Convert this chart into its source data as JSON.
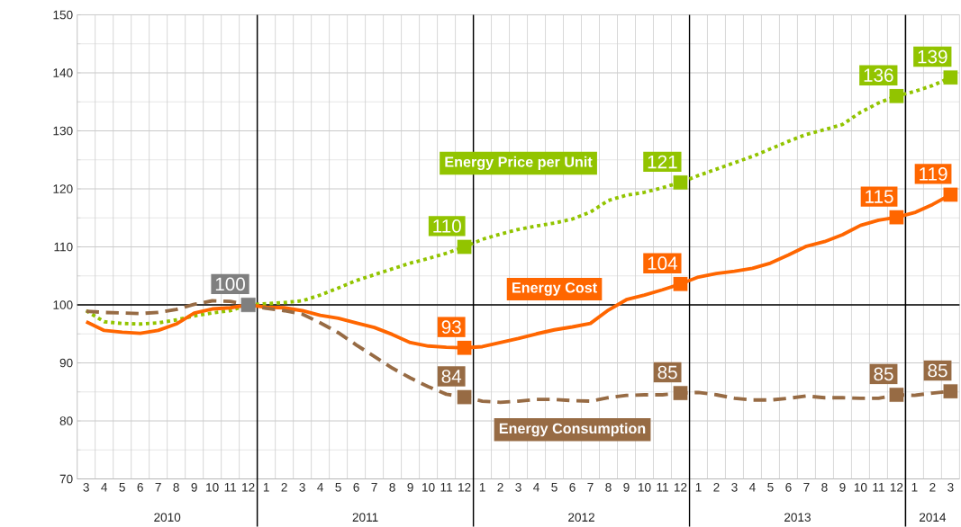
{
  "chart_data": {
    "type": "line",
    "x": [
      "2010-03",
      "2010-04",
      "2010-05",
      "2010-06",
      "2010-07",
      "2010-08",
      "2010-09",
      "2010-10",
      "2010-11",
      "2010-12",
      "2011-01",
      "2011-02",
      "2011-03",
      "2011-04",
      "2011-05",
      "2011-06",
      "2011-07",
      "2011-08",
      "2011-09",
      "2011-10",
      "2011-11",
      "2011-12",
      "2012-01",
      "2012-02",
      "2012-03",
      "2012-04",
      "2012-05",
      "2012-06",
      "2012-07",
      "2012-08",
      "2012-09",
      "2012-10",
      "2012-11",
      "2012-12",
      "2013-01",
      "2013-02",
      "2013-03",
      "2013-04",
      "2013-05",
      "2013-06",
      "2013-07",
      "2013-08",
      "2013-09",
      "2013-10",
      "2013-11",
      "2013-12",
      "2014-01",
      "2014-02",
      "2014-03"
    ],
    "series": [
      {
        "name": "Energy Price per Unit",
        "color": "#92c400",
        "line_style": "dotted",
        "values": [
          99,
          97.1,
          96.8,
          96.7,
          96.9,
          97.4,
          98.1,
          98.6,
          99.0,
          100,
          100.2,
          100.4,
          100.7,
          101.7,
          102.9,
          104.2,
          105.2,
          106.2,
          107.2,
          108,
          108.9,
          110,
          111.3,
          112.2,
          113,
          113.6,
          114.1,
          114.8,
          116,
          118,
          118.9,
          119.4,
          120.2,
          121.1,
          122.3,
          123.4,
          124.5,
          125.6,
          126.9,
          128.2,
          129.4,
          130.2,
          131.1,
          133.2,
          134.8,
          136,
          136.8,
          137.8,
          139.2
        ],
        "value_labels": [
          null,
          null,
          null,
          null,
          null,
          null,
          null,
          null,
          null,
          null,
          null,
          null,
          null,
          null,
          null,
          null,
          null,
          null,
          null,
          null,
          null,
          "110",
          null,
          null,
          null,
          null,
          null,
          null,
          null,
          null,
          null,
          null,
          null,
          "121",
          null,
          null,
          null,
          null,
          null,
          null,
          null,
          null,
          null,
          null,
          null,
          "136",
          null,
          null,
          "139"
        ]
      },
      {
        "name": "Energy Cost",
        "color": "#ff6600",
        "line_style": "solid",
        "values": [
          97.1,
          95.6,
          95.3,
          95.1,
          95.6,
          96.7,
          98.6,
          99.3,
          99.5,
          100,
          99.6,
          99.5,
          99,
          98.2,
          97.7,
          96.9,
          96.1,
          94.9,
          93.5,
          92.9,
          92.7,
          92.6,
          92.8,
          93.5,
          94.2,
          95,
          95.7,
          96.2,
          96.8,
          99.1,
          100.9,
          101.7,
          102.6,
          103.6,
          104.8,
          105.4,
          105.8,
          106.3,
          107.2,
          108.6,
          110.1,
          110.9,
          112.1,
          113.7,
          114.6,
          115.1,
          115.9,
          117.3,
          119
        ],
        "value_labels": [
          null,
          null,
          null,
          null,
          null,
          null,
          null,
          null,
          null,
          null,
          null,
          null,
          null,
          null,
          null,
          null,
          null,
          null,
          null,
          null,
          null,
          "93",
          null,
          null,
          null,
          null,
          null,
          null,
          null,
          null,
          null,
          null,
          null,
          "104",
          null,
          null,
          null,
          null,
          null,
          null,
          null,
          null,
          null,
          null,
          null,
          "115",
          null,
          null,
          "119"
        ]
      },
      {
        "name": "Energy Consumption",
        "color": "#976b44",
        "line_style": "dashed",
        "values": [
          98.9,
          98.7,
          98.6,
          98.5,
          98.7,
          99.2,
          100.1,
          100.7,
          100.6,
          100,
          99.4,
          99,
          98.4,
          96.9,
          95.2,
          93.1,
          91.1,
          89.1,
          87.4,
          85.9,
          84.6,
          84.1,
          83.4,
          83.2,
          83.4,
          83.7,
          83.7,
          83.5,
          83.4,
          84,
          84.4,
          84.5,
          84.5,
          84.8,
          84.9,
          84.5,
          83.9,
          83.6,
          83.6,
          83.9,
          84.3,
          84,
          84,
          83.9,
          83.9,
          84.5,
          84.4,
          84.8,
          85.1
        ],
        "value_labels": [
          null,
          null,
          null,
          null,
          null,
          null,
          null,
          null,
          null,
          null,
          null,
          null,
          null,
          null,
          null,
          null,
          null,
          null,
          null,
          null,
          null,
          "84",
          null,
          null,
          null,
          null,
          null,
          null,
          null,
          null,
          null,
          null,
          null,
          "85",
          null,
          null,
          null,
          null,
          null,
          null,
          null,
          null,
          null,
          null,
          null,
          "85",
          null,
          null,
          "85"
        ]
      },
      {
        "type": "scatter",
        "marker": "square",
        "color": "#7f7f7f",
        "x": [
          "2010-12"
        ],
        "values": [
          100
        ],
        "value_labels": [
          "100"
        ]
      }
    ],
    "xlim": [
      "2010-02-16",
      "2014-03-16"
    ],
    "xticks": [
      {
        "value": "2010-03",
        "label": "3"
      },
      {
        "value": "2010-04",
        "label": "4"
      },
      {
        "value": "2010-05",
        "label": "5"
      },
      {
        "value": "2010-06",
        "label": "6"
      },
      {
        "value": "2010-07",
        "label": "7"
      },
      {
        "value": "2010-08",
        "label": "8"
      },
      {
        "value": "2010-09",
        "label": "9"
      },
      {
        "value": "2010-10",
        "label": "10"
      },
      {
        "value": "2010-11",
        "label": "11"
      },
      {
        "value": "2010-12",
        "label": "12"
      },
      {
        "value": "2011-01",
        "label": "1"
      },
      {
        "value": "2011-02",
        "label": "2"
      },
      {
        "value": "2011-03",
        "label": "3"
      },
      {
        "value": "2011-04",
        "label": "4"
      },
      {
        "value": "2011-05",
        "label": "5"
      },
      {
        "value": "2011-06",
        "label": "6"
      },
      {
        "value": "2011-07",
        "label": "7"
      },
      {
        "value": "2011-08",
        "label": "8"
      },
      {
        "value": "2011-09",
        "label": "9"
      },
      {
        "value": "2011-10",
        "label": "10"
      },
      {
        "value": "2011-11",
        "label": "11"
      },
      {
        "value": "2011-12",
        "label": "12"
      },
      {
        "value": "2012-01",
        "label": "1"
      },
      {
        "value": "2012-02",
        "label": "2"
      },
      {
        "value": "2012-03",
        "label": "3"
      },
      {
        "value": "2012-04",
        "label": "4"
      },
      {
        "value": "2012-05",
        "label": "5"
      },
      {
        "value": "2012-06",
        "label": "6"
      },
      {
        "value": "2012-07",
        "label": "7"
      },
      {
        "value": "2012-08",
        "label": "8"
      },
      {
        "value": "2012-09",
        "label": "9"
      },
      {
        "value": "2012-10",
        "label": "10"
      },
      {
        "value": "2012-11",
        "label": "11"
      },
      {
        "value": "2012-12",
        "label": "12"
      },
      {
        "value": "2013-01",
        "label": "1"
      },
      {
        "value": "2013-02",
        "label": "2"
      },
      {
        "value": "2013-03",
        "label": "3"
      },
      {
        "value": "2013-04",
        "label": "4"
      },
      {
        "value": "2013-05",
        "label": "5"
      },
      {
        "value": "2013-06",
        "label": "6"
      },
      {
        "value": "2013-07",
        "label": "7"
      },
      {
        "value": "2013-08",
        "label": "8"
      },
      {
        "value": "2013-09",
        "label": "9"
      },
      {
        "value": "2013-10",
        "label": "10"
      },
      {
        "value": "2013-11",
        "label": "11"
      },
      {
        "value": "2013-12",
        "label": "12"
      },
      {
        "value": "2014-01",
        "label": "1"
      },
      {
        "value": "2014-02",
        "label": "2"
      },
      {
        "value": "2014-03",
        "label": "3"
      }
    ],
    "ylim": [
      70,
      150
    ],
    "yticks": [
      70,
      80,
      90,
      100,
      110,
      120,
      130,
      140,
      150
    ],
    "grid": true,
    "ref_lines": [
      {
        "axis": "y",
        "value": 100,
        "color": "#000000"
      },
      {
        "axis": "x",
        "value": "2010-12-16",
        "color": "#000000"
      },
      {
        "axis": "x",
        "value": "2011-12-16",
        "color": "#000000"
      },
      {
        "axis": "x",
        "value": "2012-12-16",
        "color": "#000000"
      },
      {
        "axis": "x",
        "value": "2013-12-16",
        "color": "#000000"
      }
    ],
    "annotations": [
      "2010",
      "2011",
      "2012",
      "2013",
      "2014"
    ]
  }
}
